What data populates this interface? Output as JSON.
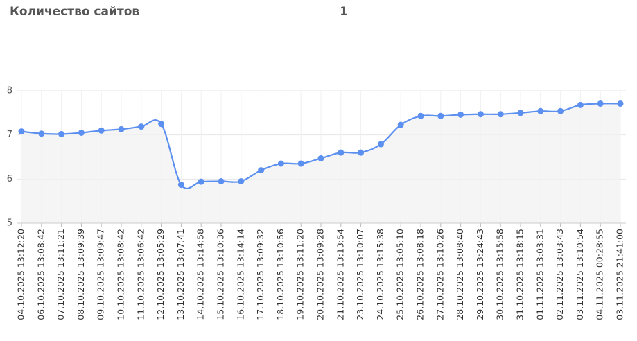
{
  "header": {
    "title": "Количество сайтов",
    "count": "1"
  },
  "chart_data": {
    "type": "line",
    "categories": [
      "04.10.2025 13:12:20",
      "06.10.2025 13:08:42",
      "07.10.2025 13:11:21",
      "08.10.2025 13:09:39",
      "09.10.2025 13:09:47",
      "10.10.2025 13:08:42",
      "11.10.2025 13:06:42",
      "12.10.2025 13:05:29",
      "13.10.2025 13:07:41",
      "14.10.2025 13:14:58",
      "15.10.2025 13:10:36",
      "16.10.2025 13:14:14",
      "17.10.2025 13:09:32",
      "18.10.2025 13:10:56",
      "19.10.2025 13:11:20",
      "20.10.2025 13:09:28",
      "21.10.2025 13:13:54",
      "23.10.2025 13:10:07",
      "24.10.2025 13:15:38",
      "25.10.2025 13:05:10",
      "26.10.2025 13:08:18",
      "27.10.2025 13:10:26",
      "28.10.2025 13:08:40",
      "29.10.2025 13:24:43",
      "30.10.2025 13:15:58",
      "31.10.2025 13:18:15",
      "01.11.2025 13:03:31",
      "02.11.2025 13:03:43",
      "03.11.2025 13:10:54",
      "04.11.2025 00:28:55",
      "03.11.2025 21:41:00"
    ],
    "values": [
      7.08,
      7.03,
      7.02,
      7.05,
      7.1,
      7.13,
      7.19,
      7.25,
      5.87,
      5.94,
      5.95,
      5.95,
      6.2,
      6.35,
      6.35,
      6.47,
      6.6,
      6.6,
      6.79,
      7.23,
      7.43,
      7.43,
      7.46,
      7.47,
      7.47,
      7.5,
      7.54,
      7.54,
      7.68,
      7.71,
      7.71
    ],
    "color": "#5b8ff0",
    "ylim": [
      5,
      8
    ],
    "yticks": [
      5,
      6,
      7,
      8
    ],
    "grid": true
  }
}
